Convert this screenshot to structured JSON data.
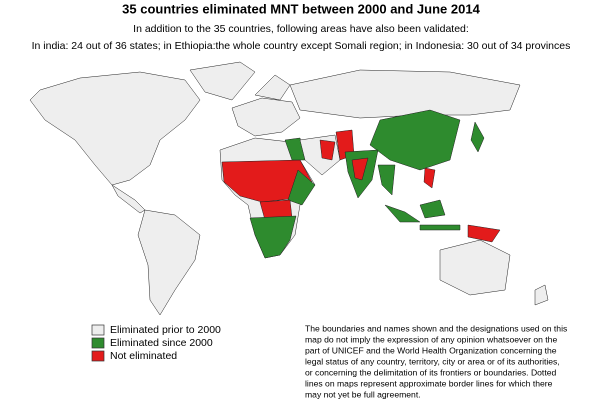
{
  "header": {
    "title": "35 countries eliminated MNT between 2000 and June 2014",
    "subtitle": [
      "In addition to the 35 countries, following areas have also been validated:",
      "In india: 24 out of 36 states; in Ethiopia:the whole country except Somali region; in Indonesia: 30 out of 34 provinces"
    ]
  },
  "legend": {
    "items": [
      {
        "label": "Eliminated prior to 2000",
        "color": "#eeeeee"
      },
      {
        "label": "Eliminated since 2000",
        "color": "#2e8b2e"
      },
      {
        "label": "Not eliminated",
        "color": "#e31b1b"
      }
    ]
  },
  "disclaimer": [
    "The boundaries and names shown and the designations used on this",
    "map do not imply the expression of any opinion whatsoever on the",
    "part of UNICEF and the World Health Organization concerning the",
    "legal status of any country, territory, city or area or of its authorities,",
    "or concerning the delimitation of its frontiers or boundaries. Dotted",
    "lines on maps represent approximate border lines for which there",
    "may not yet be full agreement."
  ]
}
